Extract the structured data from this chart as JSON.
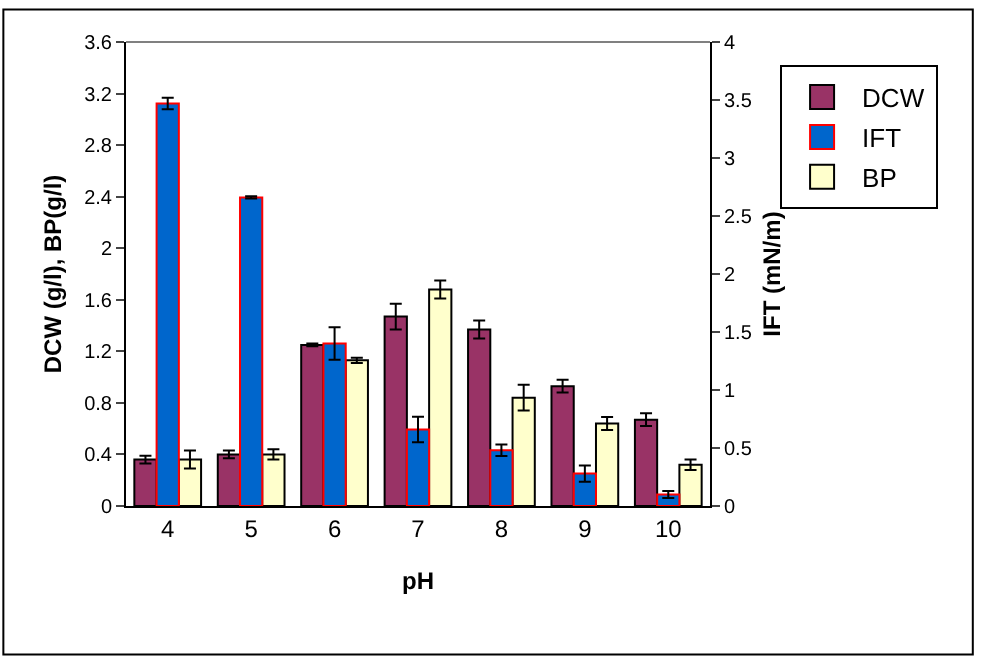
{
  "chart_data": {
    "type": "bar",
    "categories": [
      "4",
      "5",
      "6",
      "7",
      "8",
      "9",
      "10"
    ],
    "xlabel": "pH",
    "ylabel": "DCW (g/l), BP(g/l)",
    "y2label": "IFT (mN/m)",
    "series": [
      {
        "name": "DCW",
        "color": "#993366",
        "values": [
          0.36,
          0.4,
          1.25,
          1.47,
          1.37,
          0.93,
          0.67
        ],
        "errors": [
          0.03,
          0.03,
          0.01,
          0.1,
          0.07,
          0.05,
          0.05
        ]
      },
      {
        "name": "IFT",
        "color": "#0066cc",
        "axis": "y2",
        "values": [
          3.47,
          2.66,
          1.4,
          0.66,
          0.48,
          0.28,
          0.1
        ],
        "errors": [
          0.05,
          0.01,
          0.14,
          0.11,
          0.05,
          0.07,
          0.03
        ]
      },
      {
        "name": "BP",
        "color": "#ffffcc",
        "values": [
          0.36,
          0.4,
          1.13,
          1.68,
          0.84,
          0.64,
          0.32
        ],
        "errors": [
          0.07,
          0.04,
          0.02,
          0.07,
          0.1,
          0.05,
          0.04
        ]
      }
    ],
    "ylim": [
      0,
      3.6
    ],
    "yticks": [
      0,
      0.4,
      0.8,
      1.2,
      1.6,
      2,
      2.4,
      2.8,
      3.2,
      3.6
    ],
    "y2lim": [
      0,
      4
    ],
    "y2ticks": [
      0,
      0.5,
      1,
      1.5,
      2,
      2.5,
      3,
      3.5,
      4
    ],
    "legend": "right"
  }
}
